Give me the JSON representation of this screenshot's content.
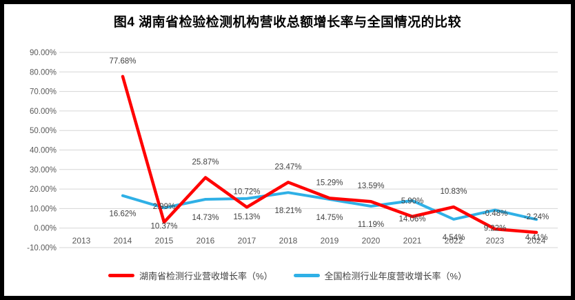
{
  "title": "图4 湖南省检验检测机构营收总额增长率与全国情况的比较",
  "chart_data": {
    "type": "line",
    "title": "图4 湖南省检验检测机构营收总额增长率与全国情况的比较",
    "x_categories": [
      "2013",
      "2014",
      "2015",
      "2016",
      "2017",
      "2018",
      "2019",
      "2020",
      "2021",
      "2022",
      "2023",
      "2024"
    ],
    "series": [
      {
        "name": "湖南省检测行业营收增长率（%）",
        "color": "#FF0000",
        "label_position": "above",
        "values": [
          null,
          77.68,
          2.99,
          25.87,
          10.72,
          23.47,
          15.29,
          13.59,
          5.9,
          10.83,
          -0.48,
          -2.24
        ]
      },
      {
        "name": "全国检测行业年度营收增长率（%）",
        "color": "#2FB0E6",
        "label_position": "below",
        "values": [
          null,
          16.62,
          10.37,
          14.73,
          15.13,
          18.21,
          14.75,
          11.19,
          14.06,
          4.54,
          9.22,
          4.41
        ]
      }
    ],
    "ylim": [
      -10,
      90
    ],
    "y_ticks": [
      90,
      80,
      70,
      60,
      50,
      40,
      30,
      20,
      10,
      0,
      -10
    ],
    "y_tick_labels": [
      "90.00%",
      "80.00%",
      "70.00%",
      "60.00%",
      "50.00%",
      "40.00%",
      "30.00%",
      "20.00%",
      "10.00%",
      "0.00%",
      "-10.00%"
    ],
    "grid": "horizontal",
    "data_labels": "shown",
    "legend_position": "bottom"
  },
  "legend": {
    "items": [
      {
        "label": "湖南省检测行业营收增长率（%）",
        "color": "#FF0000"
      },
      {
        "label": "全国检测行业年度营收增长率（%）",
        "color": "#2FB0E6"
      }
    ]
  },
  "colors": {
    "gridline": "#D6D6D6",
    "axis_text": "#595959",
    "data_label_text": "#404040",
    "frame_border": "#000000",
    "background": "#FFFFFF"
  }
}
